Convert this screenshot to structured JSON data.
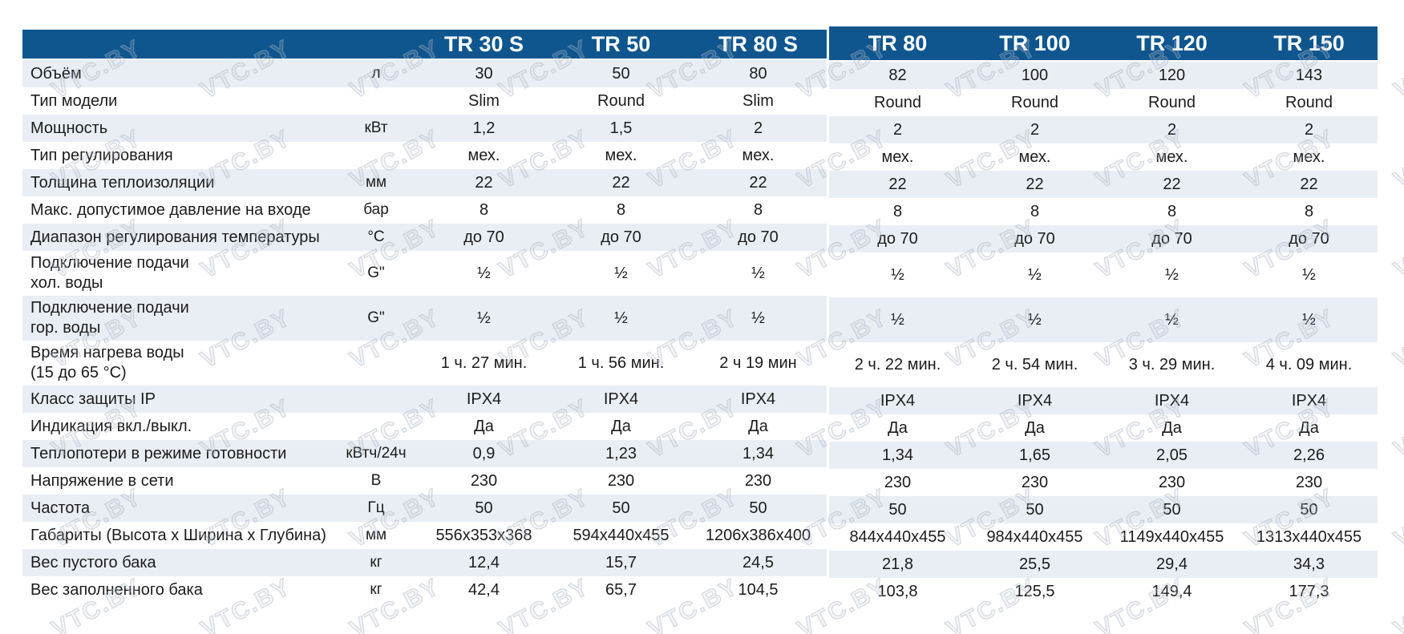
{
  "page": {
    "watermark_text": "VTC.BY"
  },
  "colors": {
    "header_bg": "#0f568f",
    "header_text": "#ffffff",
    "stripe_bg": "#e9eef4",
    "body_text": "#1c1c1c",
    "watermark": "#c6cdd8"
  },
  "table": {
    "models": [
      "TR 30 S",
      "TR 50",
      "TR 80 S",
      "TR 80",
      "TR 100",
      "TR 120",
      "TR 150"
    ],
    "rows": [
      {
        "label": "Объём",
        "unit": "л",
        "values": [
          "30",
          "50",
          "80",
          "82",
          "100",
          "120",
          "143"
        ]
      },
      {
        "label": "Тип модели",
        "unit": "",
        "values": [
          "Slim",
          "Round",
          "Slim",
          "Round",
          "Round",
          "Round",
          "Round"
        ]
      },
      {
        "label": "Мощность",
        "unit": "кВт",
        "values": [
          "1,2",
          "1,5",
          "2",
          "2",
          "2",
          "2",
          "2"
        ]
      },
      {
        "label": "Тип регулирования",
        "unit": "",
        "values": [
          "мех.",
          "мех.",
          "мех.",
          "мех.",
          "мех.",
          "мех.",
          "мех."
        ]
      },
      {
        "label": "Толщина теплоизоляции",
        "unit": "мм",
        "values": [
          "22",
          "22",
          "22",
          "22",
          "22",
          "22",
          "22"
        ]
      },
      {
        "label": "Макс. допустимое давление на входе",
        "unit": "бар",
        "values": [
          "8",
          "8",
          "8",
          "8",
          "8",
          "8",
          "8"
        ]
      },
      {
        "label": "Диапазон регулирования температуры",
        "unit": "°C",
        "values": [
          "до 70",
          "до 70",
          "до 70",
          "до 70",
          "до 70",
          "до 70",
          "до 70"
        ]
      },
      {
        "label": "Подключение подачи\nхол. воды",
        "unit": "G\"",
        "values": [
          "½",
          "½",
          "½",
          "½",
          "½",
          "½",
          "½"
        ],
        "tall": true
      },
      {
        "label": "Подключение подачи\nгор. воды",
        "unit": "G\"",
        "values": [
          "½",
          "½",
          "½",
          "½",
          "½",
          "½",
          "½"
        ],
        "tall": true
      },
      {
        "label": "Время нагрева воды\n(15 до 65 °C)",
        "unit": "",
        "values": [
          "1 ч. 27 мин.",
          "1 ч. 56 мин.",
          "2 ч 19 мин",
          "2 ч. 22 мин.",
          "2 ч. 54 мин.",
          "3 ч. 29 мин.",
          "4 ч. 09 мин."
        ],
        "tall": true
      },
      {
        "label": "Класс защиты IP",
        "unit": "",
        "values": [
          "IPX4",
          "IPX4",
          "IPX4",
          "IPX4",
          "IPX4",
          "IPX4",
          "IPX4"
        ]
      },
      {
        "label": "Индикация вкл./выкл.",
        "unit": "",
        "values": [
          "Да",
          "Да",
          "Да",
          "Да",
          "Да",
          "Да",
          "Да"
        ]
      },
      {
        "label": "Теплопотери в режиме готовности",
        "unit": "кВтч/24ч",
        "values": [
          "0,9",
          "1,23",
          "1,34",
          "1,34",
          "1,65",
          "2,05",
          "2,26"
        ]
      },
      {
        "label": "Напряжение в сети",
        "unit": "В",
        "values": [
          "230",
          "230",
          "230",
          "230",
          "230",
          "230",
          "230"
        ]
      },
      {
        "label": "Частота",
        "unit": "Гц",
        "values": [
          "50",
          "50",
          "50",
          "50",
          "50",
          "50",
          "50"
        ]
      },
      {
        "label": "Габариты (Высота х Ширина х Глубина)",
        "unit": "мм",
        "values": [
          "556x353x368",
          "594x440x455",
          "1206x386x400",
          "844x440x455",
          "984x440x455",
          "1149x440x455",
          "1313x440x455"
        ]
      },
      {
        "label": "Вес пустого бака",
        "unit": "кг",
        "values": [
          "12,4",
          "15,7",
          "24,5",
          "21,8",
          "25,5",
          "29,4",
          "34,3"
        ]
      },
      {
        "label": "Вес заполненного бака",
        "unit": "кг",
        "values": [
          "42,4",
          "65,7",
          "104,5",
          "103,8",
          "125,5",
          "149,4",
          "177,3"
        ]
      }
    ]
  }
}
